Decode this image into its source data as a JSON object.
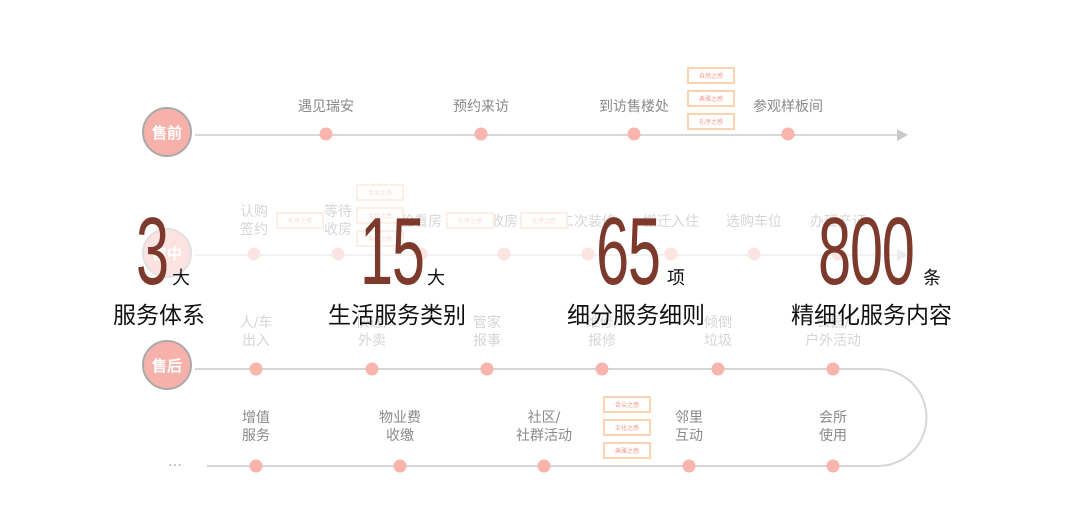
{
  "presale": {
    "stage": "售前",
    "steps": [
      "遇见瑞安",
      "预约来访",
      "到访售楼处",
      "参观样板间"
    ],
    "tags": [
      "自然之感",
      "典雅之感",
      "礼序之感"
    ]
  },
  "midsale": {
    "stage": "售中",
    "steps": [
      "认购\n签约",
      "等待\n收房",
      "验看房",
      "收房",
      "二次装修",
      "搬迁入住",
      "选购车位",
      "办理产证"
    ],
    "tags": {
      "after_sign": "礼序之感",
      "wait": [
        "舌尖之感",
        "文化之感",
        "典雅之感"
      ],
      "after_view": "礼序之感",
      "after_receive": "礼序之感"
    }
  },
  "aftersale": {
    "stage": "售后",
    "row1": [
      "人/车\n出入",
      "快递/\n外卖",
      "管家\n报事",
      "维修/\n报修",
      "倾倒\n垃圾",
      "公园/\n户外活动"
    ],
    "row2": [
      "增值\n服务",
      "物业费\n收缴",
      "社区/\n社群活动",
      "邻里\n互动",
      "会所\n使用"
    ],
    "ellipsis": "…",
    "tags": [
      "舌尖之感",
      "文化之感",
      "典雅之感"
    ]
  },
  "stats": [
    {
      "num": "3",
      "unit": "大",
      "caption": "服务体系"
    },
    {
      "num": "15",
      "unit": "大",
      "caption": "生活服务类别"
    },
    {
      "num": "65",
      "unit": "项",
      "caption": "细分服务细则"
    },
    {
      "num": "800",
      "unit": "条",
      "caption": "精细化服务内容"
    }
  ],
  "colors": {
    "stage": "#f7b1ab",
    "dot": "#f9b4ae",
    "number": "#7d3a2c",
    "tag_border": "#fcd3b0"
  }
}
